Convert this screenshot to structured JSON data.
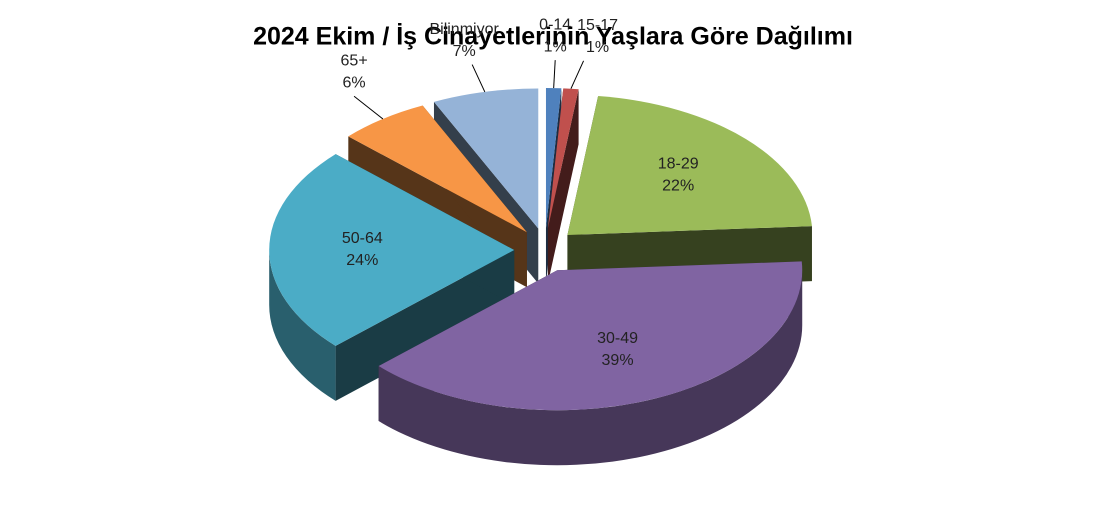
{
  "chart_data": {
    "type": "pie",
    "title": "2024 Ekim / İş Cinayetlerinin Yaşlara Göre Dağılımı",
    "categories": [
      "0-14",
      "15-17",
      "18-29",
      "30-49",
      "50-64",
      "65+",
      "Bilinmiyor"
    ],
    "values": [
      1,
      1,
      22,
      39,
      24,
      6,
      7
    ],
    "value_labels": [
      "1%",
      "1%",
      "22%",
      "39%",
      "24%",
      "6%",
      "7%"
    ],
    "colors": [
      "#4f81bd",
      "#c0504d",
      "#9bbb59",
      "#8064a2",
      "#4bacc6",
      "#f79646",
      "#95b3d7"
    ]
  }
}
